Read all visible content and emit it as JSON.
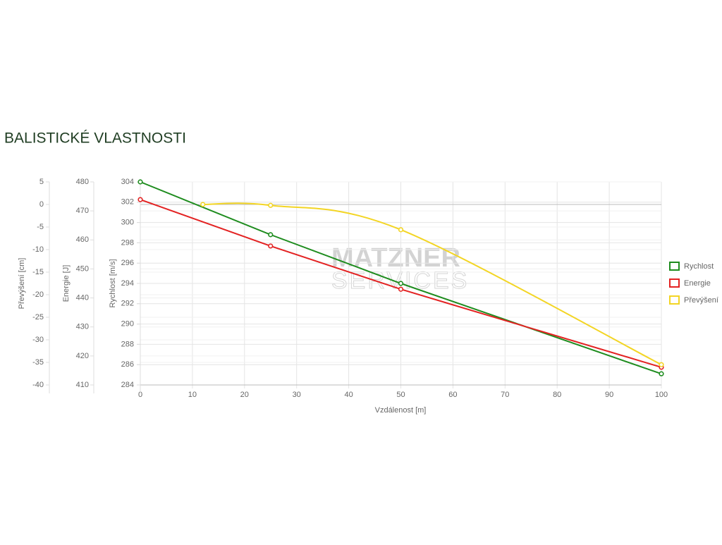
{
  "chart_data": {
    "type": "line",
    "title": "BALISTICKÉ VLASTNOSTI",
    "watermark": [
      "MATZNER",
      "SERVICES"
    ],
    "xlabel": "Vzdálenost [m]",
    "ylabel": "Rychlost [m/s]",
    "y2label": "Energie [J]",
    "y3label": "Převýšení [cm]",
    "xlim": [
      0,
      100
    ],
    "xticks": [
      0,
      10,
      20,
      30,
      40,
      50,
      60,
      70,
      80,
      90,
      100
    ],
    "ylim": [
      284,
      304
    ],
    "yticks": [
      284,
      286,
      288,
      290,
      292,
      294,
      296,
      298,
      300,
      302,
      304
    ],
    "y2lim": [
      410,
      480
    ],
    "y2ticks": [
      410,
      420,
      430,
      440,
      450,
      460,
      470,
      480
    ],
    "y3lim": [
      -40,
      5
    ],
    "y3ticks": [
      5,
      0,
      -5,
      -10,
      -15,
      -20,
      -25,
      -30,
      -35,
      -40
    ],
    "grid": true,
    "legend": "right",
    "series": [
      {
        "name": "Rychlost",
        "color": "#1e8c1e",
        "axis": "y",
        "smooth": false,
        "x": [
          0,
          25,
          50,
          100
        ],
        "values": [
          304,
          298.8,
          294,
          285.1
        ]
      },
      {
        "name": "Energie",
        "color": "#e32222",
        "axis": "y2",
        "smooth": false,
        "x": [
          0,
          25,
          50,
          100
        ],
        "values": [
          473.9,
          457.9,
          443,
          416.1
        ]
      },
      {
        "name": "Převýšení",
        "color": "#f3d524",
        "axis": "y3",
        "smooth": true,
        "x": [
          12,
          25,
          50,
          100
        ],
        "values": [
          0,
          -0.2,
          -5.6,
          -35.5
        ]
      }
    ]
  }
}
